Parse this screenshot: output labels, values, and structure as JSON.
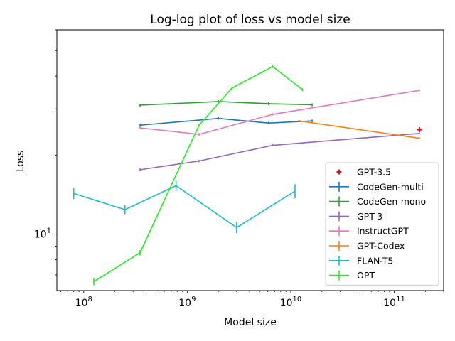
{
  "chart_data": {
    "type": "line",
    "title": "Log-log plot of loss vs model size",
    "xlabel": "Model size",
    "ylabel": "Loss",
    "xscale": "log",
    "yscale": "log",
    "xlim": [
      55000000.0,
      300000000000.0
    ],
    "ylim": [
      6.1,
      60
    ],
    "x_ticks": [
      {
        "value": 100000000.0,
        "base": "10",
        "exp": "8"
      },
      {
        "value": 1000000000.0,
        "base": "10",
        "exp": "9"
      },
      {
        "value": 10000000000.0,
        "base": "10",
        "exp": "10"
      },
      {
        "value": 100000000000.0,
        "base": "10",
        "exp": "11"
      }
    ],
    "y_ticks": [
      {
        "value": 10,
        "base": "10",
        "exp": "1"
      }
    ],
    "legend_position": "lower-right",
    "series": [
      {
        "name": "GPT-3.5",
        "marker": "plus",
        "line": false,
        "color": "#ff0000",
        "points": [
          {
            "x": 175000000000.0,
            "y": 25.0,
            "err": 0.6
          }
        ]
      },
      {
        "name": "CodeGen-multi",
        "color": "#1f77b4",
        "points": [
          {
            "x": 350000000.0,
            "y": 26.0,
            "err": 0.3
          },
          {
            "x": 2000000000.0,
            "y": 27.6,
            "err": 0.3
          },
          {
            "x": 6100000000.0,
            "y": 26.5,
            "err": 0.3
          },
          {
            "x": 16100000000.0,
            "y": 27.0,
            "err": 0.3
          }
        ]
      },
      {
        "name": "CodeGen-mono",
        "color": "#2ca02c",
        "points": [
          {
            "x": 350000000.0,
            "y": 31.0,
            "err": 0.4
          },
          {
            "x": 2000000000.0,
            "y": 32.0,
            "err": 0.4
          },
          {
            "x": 6100000000.0,
            "y": 31.4,
            "err": 0.4
          },
          {
            "x": 16100000000.0,
            "y": 31.1,
            "err": 0.4
          }
        ]
      },
      {
        "name": "GPT-3",
        "color": "#9467bd",
        "points": [
          {
            "x": 350000000.0,
            "y": 17.6,
            "err": 0.2
          },
          {
            "x": 1300000000.0,
            "y": 19.0,
            "err": 0.2
          },
          {
            "x": 6700000000.0,
            "y": 21.8,
            "err": 0.2
          },
          {
            "x": 175000000000.0,
            "y": 24.2,
            "err": 0.2
          }
        ]
      },
      {
        "name": "InstructGPT",
        "color": "#e377c2",
        "points": [
          {
            "x": 350000000.0,
            "y": 25.4,
            "err": 0.3
          },
          {
            "x": 1300000000.0,
            "y": 24.0,
            "err": 0.3
          },
          {
            "x": 6700000000.0,
            "y": 28.6,
            "err": 0.3
          },
          {
            "x": 175000000000.0,
            "y": 35.3,
            "err": 0.3
          }
        ]
      },
      {
        "name": "GPT-Codex",
        "color": "#ff7f0e",
        "points": [
          {
            "x": 12000000000.0,
            "y": 27.0,
            "err": 0.2
          },
          {
            "x": 175000000000.0,
            "y": 23.2,
            "err": 0.2
          }
        ]
      },
      {
        "name": "FLAN-T5",
        "color": "#17becf",
        "points": [
          {
            "x": 80000000.0,
            "y": 14.3,
            "err": 0.7
          },
          {
            "x": 250000000.0,
            "y": 12.4,
            "err": 0.5
          },
          {
            "x": 780000000.0,
            "y": 15.3,
            "err": 0.7
          },
          {
            "x": 3000000000.0,
            "y": 10.6,
            "err": 0.5
          },
          {
            "x": 11000000000.0,
            "y": 14.6,
            "err": 0.9
          }
        ]
      },
      {
        "name": "OPT",
        "color": "#22ee22",
        "points": [
          {
            "x": 125000000.0,
            "y": 6.6,
            "err": 0.2
          },
          {
            "x": 350000000.0,
            "y": 8.5,
            "err": 0.2
          },
          {
            "x": 1300000000.0,
            "y": 26.0,
            "err": 0.3
          },
          {
            "x": 2700000000.0,
            "y": 36.0,
            "err": 0.4
          },
          {
            "x": 6700000000.0,
            "y": 43.5,
            "err": 0.6
          },
          {
            "x": 13000000000.0,
            "y": 35.5,
            "err": 0.5
          }
        ]
      }
    ]
  }
}
